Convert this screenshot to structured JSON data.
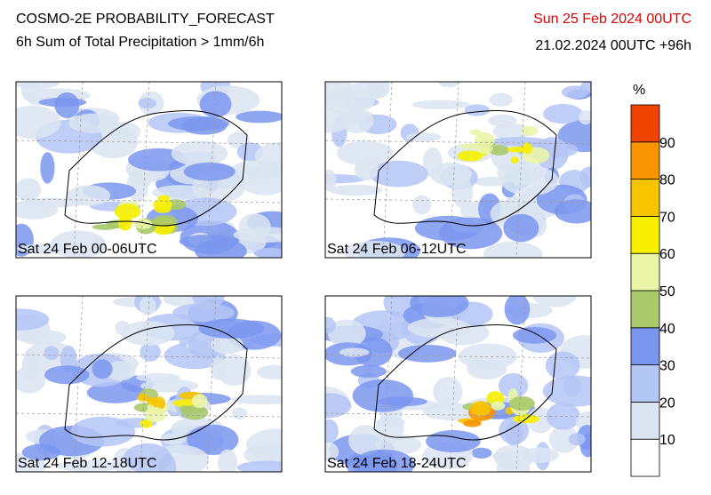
{
  "header": {
    "title": "COSMO-2E PROBABILITY_FORECAST",
    "subtitle": "6h Sum of Total Precipitation > 1mm/6h",
    "valid_time": "Sun 25 Feb 2024 00UTC",
    "run": "21.02.2024 00UTC +96h"
  },
  "panels": [
    {
      "label": "Sat 24 Feb 00-06UTC"
    },
    {
      "label": "Sat 24 Feb 06-12UTC"
    },
    {
      "label": "Sat 24 Feb 12-18UTC"
    },
    {
      "label": "Sat 24 Feb 18-24UTC"
    }
  ],
  "colorbar": {
    "unit": "%",
    "ticks": [
      10,
      20,
      30,
      40,
      50,
      60,
      70,
      80,
      90
    ],
    "colors": [
      "#ffffff",
      "#dbe5f1",
      "#b4c6f5",
      "#7b96ee",
      "#a9c96a",
      "#eaf5a8",
      "#f7f000",
      "#f7c400",
      "#f79400",
      "#f04400"
    ]
  }
}
